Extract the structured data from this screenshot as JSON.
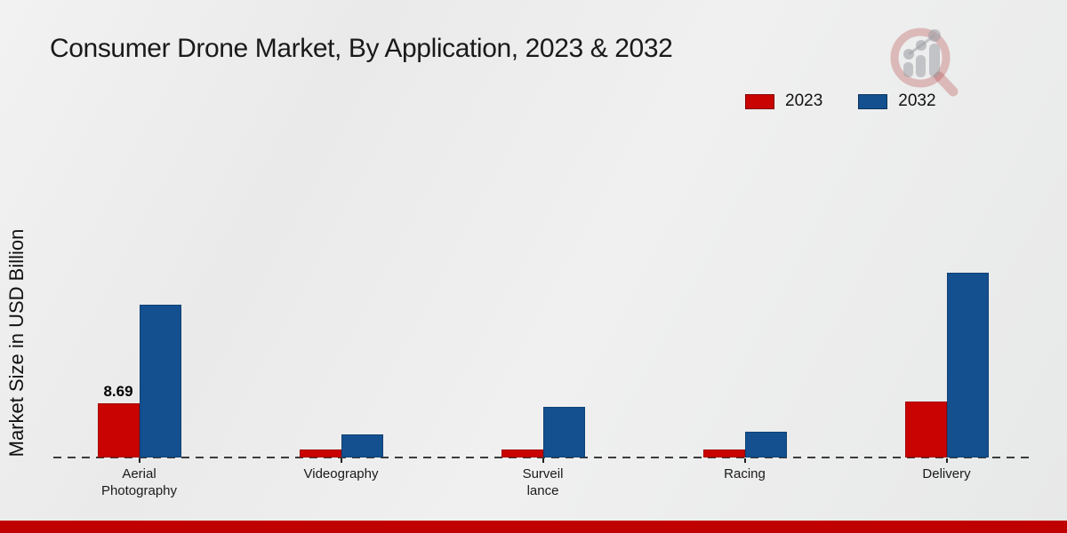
{
  "page": {
    "title": "Consumer Drone Market, By Application, 2023 & 2032",
    "y_axis_label": "Market Size in USD Billion",
    "accent_bar_color": "#c00000",
    "background_color": "#ececec"
  },
  "legend": {
    "items": [
      {
        "label": "2023",
        "color": "#c90301"
      },
      {
        "label": "2032",
        "color": "#14508f"
      }
    ]
  },
  "logo": {
    "name": "magnifier-bar-chart-watermark-logo",
    "ring_color": "rgba(176,52,52,0.28)",
    "bars_color": "rgba(158,160,166,0.55)"
  },
  "chart_data": {
    "type": "bar",
    "title": "Consumer Drone Market, By Application, 2023 & 2032",
    "xlabel": "",
    "ylabel": "Market Size in USD Billion",
    "categories": [
      "Aerial Photography",
      "Videography",
      "Surveillance",
      "Racing",
      "Delivery"
    ],
    "category_label_lines": [
      [
        "Aerial",
        "Photography"
      ],
      [
        "Videography"
      ],
      [
        "Surveil",
        "lance"
      ],
      [
        "Racing"
      ],
      [
        "Delivery"
      ]
    ],
    "series": [
      {
        "name": "2023",
        "color": "#c90301",
        "values": [
          8.69,
          1.3,
          1.3,
          1.3,
          9.0
        ]
      },
      {
        "name": "2032",
        "color": "#14508f",
        "values": [
          24.5,
          3.7,
          8.1,
          4.1,
          29.6
        ]
      }
    ],
    "data_labels": [
      {
        "series": "2023",
        "category": "Aerial Photography",
        "text": "8.69"
      }
    ],
    "ylim": [
      0,
      32
    ],
    "grid": false,
    "baseline_style": "dashed",
    "legend_position": "top-right"
  }
}
